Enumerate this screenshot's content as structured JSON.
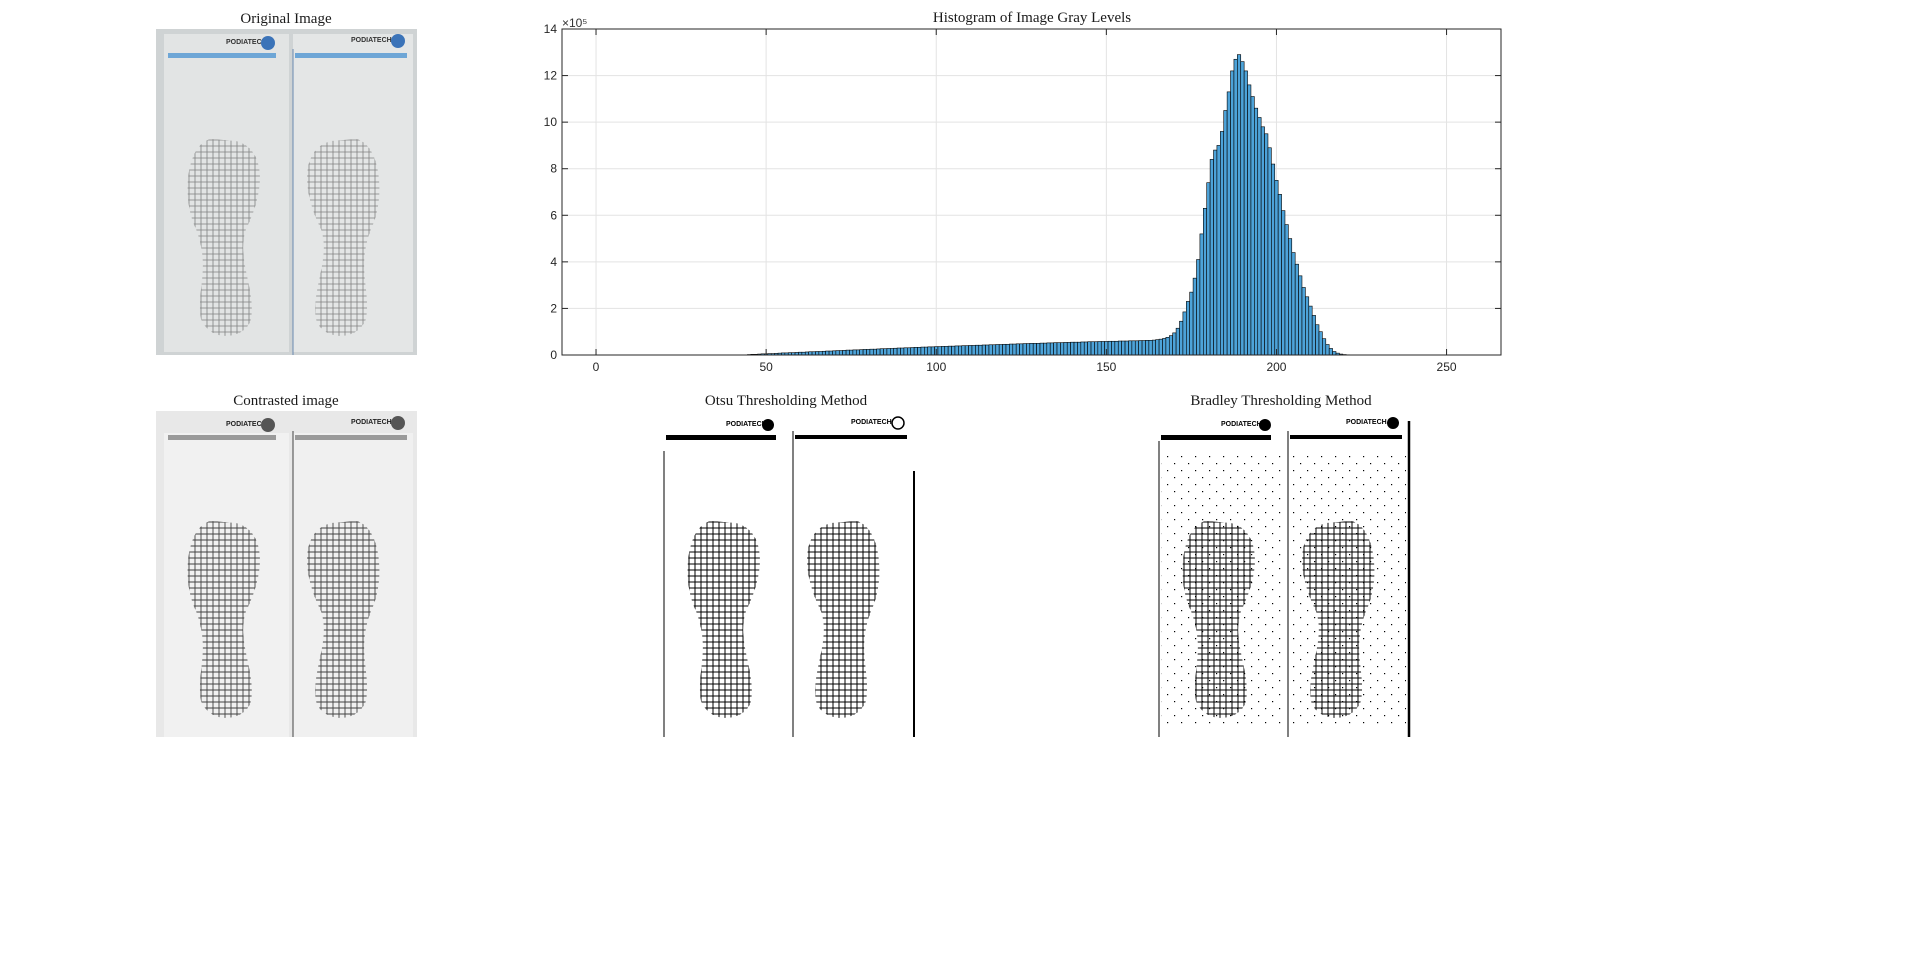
{
  "figure": {
    "original_title": "Original Image",
    "contrasted_title": "Contrasted image",
    "otsu_title": "Otsu Thresholding Method",
    "bradley_title": "Bradley Thresholding Method",
    "logo_text": "PODIATECH"
  },
  "chart_data": {
    "type": "bar",
    "title": "Histogram of Image Gray Levels",
    "xlabel": "",
    "ylabel": "",
    "y_exponent_label": "×10⁵",
    "xlim": [
      -10,
      266
    ],
    "ylim": [
      0,
      14
    ],
    "xticks": [
      0,
      50,
      100,
      150,
      200,
      250
    ],
    "yticks": [
      0,
      2,
      4,
      6,
      8,
      10,
      12,
      14
    ],
    "grid": true,
    "bar_color": "#4DA3D9",
    "edge_color": "#000000",
    "x_start": 45,
    "values": [
      0.02,
      0.03,
      0.03,
      0.04,
      0.05,
      0.05,
      0.06,
      0.06,
      0.07,
      0.08,
      0.09,
      0.09,
      0.1,
      0.1,
      0.11,
      0.12,
      0.12,
      0.13,
      0.14,
      0.14,
      0.15,
      0.15,
      0.16,
      0.17,
      0.17,
      0.18,
      0.19,
      0.19,
      0.2,
      0.21,
      0.21,
      0.22,
      0.22,
      0.23,
      0.24,
      0.24,
      0.25,
      0.25,
      0.26,
      0.27,
      0.27,
      0.28,
      0.28,
      0.29,
      0.3,
      0.3,
      0.31,
      0.31,
      0.32,
      0.33,
      0.33,
      0.34,
      0.34,
      0.35,
      0.35,
      0.36,
      0.36,
      0.37,
      0.37,
      0.38,
      0.38,
      0.39,
      0.39,
      0.4,
      0.4,
      0.41,
      0.41,
      0.42,
      0.42,
      0.43,
      0.43,
      0.44,
      0.44,
      0.45,
      0.45,
      0.46,
      0.46,
      0.47,
      0.47,
      0.48,
      0.48,
      0.49,
      0.49,
      0.5,
      0.5,
      0.5,
      0.51,
      0.51,
      0.52,
      0.52,
      0.53,
      0.53,
      0.53,
      0.54,
      0.54,
      0.55,
      0.55,
      0.55,
      0.56,
      0.56,
      0.57,
      0.57,
      0.57,
      0.58,
      0.58,
      0.58,
      0.59,
      0.59,
      0.59,
      0.6,
      0.6,
      0.6,
      0.61,
      0.61,
      0.61,
      0.62,
      0.62,
      0.63,
      0.63,
      0.64,
      0.66,
      0.68,
      0.71,
      0.76,
      0.83,
      0.95,
      1.15,
      1.45,
      1.85,
      2.3,
      2.7,
      3.3,
      4.1,
      5.2,
      6.3,
      7.4,
      8.4,
      8.8,
      9.0,
      9.6,
      10.5,
      11.3,
      12.2,
      12.7,
      12.9,
      12.6,
      12.2,
      11.6,
      11.1,
      10.6,
      10.2,
      9.8,
      9.5,
      8.9,
      8.2,
      7.5,
      6.9,
      6.2,
      5.6,
      5.0,
      4.4,
      3.9,
      3.4,
      2.9,
      2.5,
      2.1,
      1.7,
      1.3,
      1.0,
      0.7,
      0.45,
      0.28,
      0.15,
      0.08,
      0.04,
      0.02,
      0.01,
      0.005
    ]
  }
}
